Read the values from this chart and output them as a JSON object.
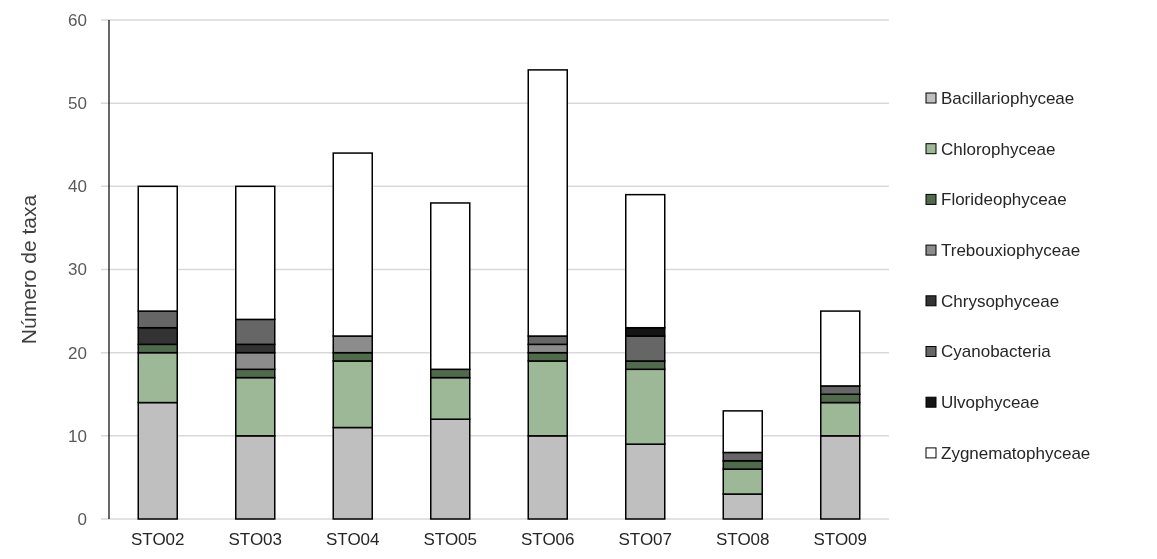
{
  "chart_data": {
    "type": "bar",
    "stacked": true,
    "ylabel": "Número de taxa",
    "ylim": [
      0,
      60
    ],
    "yticks": [
      0,
      10,
      20,
      30,
      40,
      50,
      60
    ],
    "grid": "y",
    "legend": "right",
    "categories": [
      "STO02",
      "STO03",
      "STO04",
      "STO05",
      "STO06",
      "STO07",
      "STO08",
      "STO09"
    ],
    "series": [
      {
        "name": "Bacillariophyceae",
        "color": "#bfbfbf",
        "values": [
          14,
          10,
          11,
          12,
          10,
          9,
          3,
          10
        ]
      },
      {
        "name": "Chlorophyceae",
        "color": "#9cb897",
        "values": [
          6,
          7,
          8,
          5,
          9,
          9,
          3,
          4
        ]
      },
      {
        "name": "Florideophyceae",
        "color": "#4f6b4c",
        "values": [
          1,
          1,
          1,
          1,
          1,
          1,
          1,
          1
        ]
      },
      {
        "name": "Trebouxiophyceae",
        "color": "#8c8c8c",
        "values": [
          0,
          2,
          2,
          0,
          1,
          0,
          0,
          0
        ]
      },
      {
        "name": "Chrysophyceae",
        "color": "#333333",
        "values": [
          2,
          1,
          0,
          0,
          0,
          0,
          0,
          0
        ]
      },
      {
        "name": "Cyanobacteria",
        "color": "#666666",
        "values": [
          2,
          3,
          0,
          0,
          1,
          3,
          1,
          1
        ]
      },
      {
        "name": "Ulvophyceae",
        "color": "#141414",
        "values": [
          0,
          0,
          0,
          0,
          0,
          1,
          0,
          0
        ]
      },
      {
        "name": "Zygnematophyceae",
        "color": "#ffffff",
        "values": [
          15,
          16,
          22,
          20,
          32,
          16,
          5,
          9
        ]
      }
    ]
  }
}
